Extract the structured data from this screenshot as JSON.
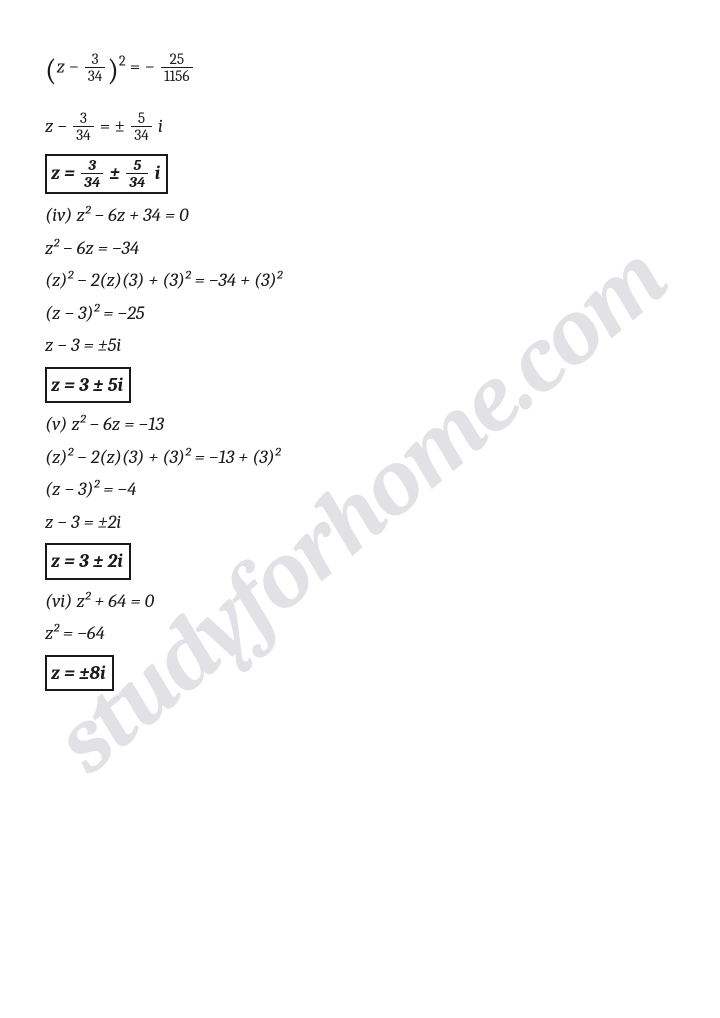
{
  "watermark_text": "studyforhome.com",
  "text_color": "#1a1a1a",
  "background_color": "#ffffff",
  "watermark_color": "rgba(190,190,200,0.45)",
  "fontsize_body": 19,
  "fontsize_watermark": 95,
  "lines": {
    "l1_a": "z −",
    "l1_n1": "3",
    "l1_d1": "34",
    "l1_b": "= −",
    "l1_n2": "25",
    "l1_d2": "1156",
    "l2_a": "z −",
    "l2_n1": "3",
    "l2_d1": "34",
    "l2_b": "= ±",
    "l2_n2": "5",
    "l2_d2": "34",
    "l2_c": "i",
    "b1_a": "z =",
    "b1_n1": "3",
    "b1_d1": "34",
    "b1_m": "±",
    "b1_n2": "5",
    "b1_d2": "34",
    "b1_c": "i",
    "l4": "(iv) z² − 6z + 34 = 0",
    "l5": "z² − 6z = −34",
    "l6": "(z)² − 2(z)(3) + (3)² = −34 + (3)²",
    "l7": "(z − 3)² = −25",
    "l8": "z − 3 = ±5i",
    "b2": "z = 3 ± 5i",
    "l9": "(v) z² − 6z = −13",
    "l10": "(z)² − 2(z)(3) + (3)² = −13 + (3)²",
    "l11": "(z − 3)² = −4",
    "l12": "z − 3 = ±2i",
    "b3": "z = 3 ± 2i",
    "l13": "(vi) z² + 64 = 0",
    "l14": "z² = −64",
    "b4": "z = ±8i"
  }
}
